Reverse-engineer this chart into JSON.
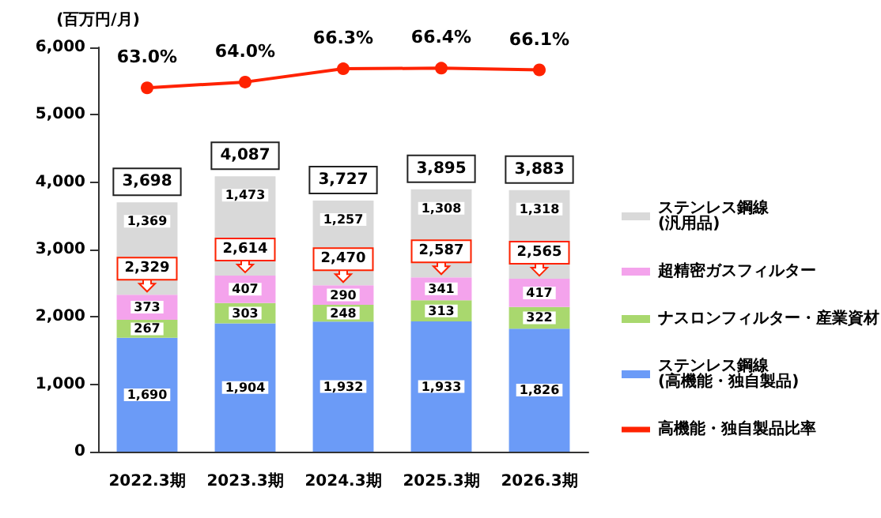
{
  "chart_data": {
    "type": "bar",
    "stacked": true,
    "ylabel": "(百万円/月)",
    "categories": [
      "2022.3期",
      "2023.3期",
      "2024.3期",
      "2025.3期",
      "2026.3期"
    ],
    "series": [
      {
        "name": "ステンレス鋼線(高機能・独自製品)",
        "color": "#6b9bf7",
        "values": [
          1690,
          1904,
          1932,
          1933,
          1826
        ],
        "value_labels": [
          "1,690",
          "1,904",
          "1,932",
          "1,933",
          "1,826"
        ]
      },
      {
        "name": "ナスロンフィルター・産業資材",
        "color": "#a9d86e",
        "values": [
          267,
          303,
          248,
          313,
          322
        ],
        "value_labels": [
          "267",
          "303",
          "248",
          "313",
          "322"
        ]
      },
      {
        "name": "超精密ガスフィルター",
        "color": "#f4a3ec",
        "values": [
          373,
          407,
          290,
          341,
          417
        ],
        "value_labels": [
          "373",
          "407",
          "290",
          "341",
          "417"
        ]
      },
      {
        "name": "ステンレス鋼線(汎用品)",
        "color": "#d9d9d9",
        "values": [
          1369,
          1473,
          1257,
          1308,
          1318
        ],
        "value_labels": [
          "1,369",
          "1,473",
          "1,257",
          "1,308",
          "1,318"
        ]
      },
      {
        "name": "高機能・独自製品比率",
        "type": "line",
        "axis": "y2",
        "color": "#ff2200",
        "values": [
          63.0,
          64.0,
          66.3,
          66.4,
          66.1
        ],
        "value_labels": [
          "63.0%",
          "64.0%",
          "66.3%",
          "66.4%",
          "66.1%"
        ]
      }
    ],
    "totals": [
      "3,698",
      "4,087",
      "3,727",
      "3,895",
      "3,883"
    ],
    "annotations": [
      {
        "text": "2,329",
        "x": "2022.3期",
        "y": 2329
      },
      {
        "text": "2,614",
        "x": "2023.3期",
        "y": 2614
      },
      {
        "text": "2,470",
        "x": "2024.3期",
        "y": 2470
      },
      {
        "text": "2,587",
        "x": "2025.3期",
        "y": 2587
      },
      {
        "text": "2,565",
        "x": "2026.3期",
        "y": 2565
      }
    ],
    "ylim": [
      0,
      6000
    ],
    "yticks": [
      {
        "value": 0,
        "label": "0"
      },
      {
        "value": 1000,
        "label": "1,000"
      },
      {
        "value": 2000,
        "label": "2,000"
      },
      {
        "value": 3000,
        "label": "3,000"
      },
      {
        "value": 4000,
        "label": "4,000"
      },
      {
        "value": 5000,
        "label": "5,000"
      },
      {
        "value": 6000,
        "label": "6,000"
      }
    ],
    "y2lim": [
      0,
      70
    ],
    "grid": false,
    "legend": "right",
    "marker": "circle"
  }
}
